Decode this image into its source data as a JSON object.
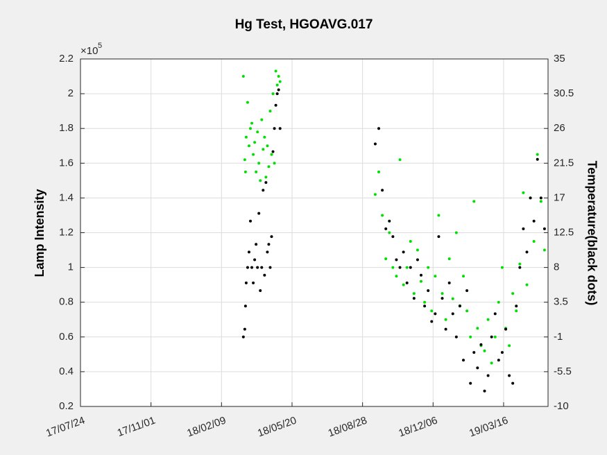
{
  "chart_data": {
    "type": "scatter",
    "title": "Hg Test, HGOAVG.017",
    "ylabel": "Lamp Intensity",
    "y2label": "Temperature(black dots)",
    "y_multiplier_base": "×10",
    "y_multiplier_exponent": "5",
    "grid": true,
    "x": [
      "18/03/12",
      "18/03/14",
      "18/03/15",
      "18/03/16",
      "18/03/18",
      "18/03/20",
      "18/03/22",
      "18/03/24",
      "18/03/26",
      "18/03/28",
      "18/03/30",
      "18/04/01",
      "18/04/03",
      "18/04/05",
      "18/04/07",
      "18/04/09",
      "18/04/11",
      "18/04/13",
      "18/04/15",
      "18/04/17",
      "18/04/19",
      "18/04/21",
      "18/04/23",
      "18/04/25",
      "18/04/27",
      "18/04/29",
      "18/05/01",
      "18/05/03",
      "18/09/15",
      "18/09/20",
      "18/09/25",
      "18/09/30",
      "18/10/05",
      "18/10/10",
      "18/10/15",
      "18/10/20",
      "18/10/25",
      "18/10/30",
      "18/11/04",
      "18/11/09",
      "18/11/14",
      "18/11/19",
      "18/11/24",
      "18/11/29",
      "18/12/04",
      "18/12/09",
      "18/12/14",
      "18/12/19",
      "18/12/24",
      "18/12/29",
      "19/01/03",
      "19/01/08",
      "19/01/13",
      "19/01/18",
      "19/01/23",
      "19/01/28",
      "19/02/02",
      "19/02/07",
      "19/02/12",
      "19/02/17",
      "19/02/22",
      "19/02/27",
      "19/03/04",
      "19/03/09",
      "19/03/14",
      "19/03/19",
      "19/03/24",
      "19/03/29",
      "19/04/03",
      "19/04/08",
      "19/04/13",
      "19/04/18",
      "19/04/23",
      "19/04/28",
      "19/05/03",
      "19/05/08",
      "19/05/13"
    ],
    "series": [
      {
        "name": "Lamp Intensity",
        "color": "#00e000",
        "axis": "y",
        "values": [
          2.1,
          1.62,
          1.55,
          1.75,
          1.95,
          1.7,
          1.8,
          1.83,
          1.65,
          1.72,
          1.55,
          1.78,
          1.6,
          1.5,
          1.85,
          1.68,
          1.75,
          1.52,
          1.7,
          1.58,
          1.9,
          1.65,
          2.0,
          1.6,
          2.13,
          2.05,
          2.1,
          2.07,
          1.42,
          1.55,
          1.3,
          1.05,
          1.2,
          1.0,
          0.95,
          1.62,
          0.9,
          1.0,
          1.15,
          0.85,
          1.1,
          0.92,
          0.8,
          1.0,
          0.75,
          0.95,
          1.3,
          0.85,
          0.7,
          1.05,
          0.82,
          1.2,
          0.78,
          0.95,
          0.75,
          0.6,
          1.38,
          0.65,
          0.55,
          0.52,
          0.7,
          0.45,
          0.6,
          0.8,
          1.0,
          0.65,
          0.55,
          0.85,
          0.75,
          1.02,
          1.43,
          0.9,
          1.4,
          1.15,
          1.65,
          1.38,
          1.1
        ]
      },
      {
        "name": "Temperature",
        "color": "#000000",
        "axis": "y2",
        "values": [
          -1,
          0,
          3,
          6,
          8,
          10,
          14,
          8,
          6,
          9,
          11,
          8,
          15,
          5,
          8,
          18,
          7,
          19,
          10,
          11,
          8,
          12,
          23,
          26,
          29,
          30.5,
          31,
          26,
          24,
          26,
          18,
          13,
          14,
          12,
          9,
          8,
          10,
          6,
          8,
          4,
          9,
          7,
          3,
          5,
          1,
          2,
          12,
          4,
          0,
          6,
          2,
          -1,
          3,
          -4,
          5,
          -7,
          -3,
          -5,
          -2,
          -8,
          -6,
          -1,
          2,
          -4,
          -3,
          0,
          -6,
          -7,
          3,
          8,
          13,
          10,
          17,
          14,
          22,
          17,
          13
        ]
      }
    ],
    "xlim": [
      "17/07/24",
      "19/05/18"
    ],
    "xticks": [
      "17/07/24",
      "17/11/01",
      "18/02/09",
      "18/05/20",
      "18/08/28",
      "18/12/06",
      "19/03/16"
    ],
    "ylim": [
      0.2,
      2.2
    ],
    "yticks": [
      0.2,
      0.4,
      0.6,
      0.8,
      1,
      1.2,
      1.4,
      1.6,
      1.8,
      2,
      2.2
    ],
    "y2lim": [
      -10,
      35
    ],
    "y2ticks": [
      -10,
      -5.5,
      -1,
      3.5,
      8,
      12.5,
      17,
      21.5,
      26,
      30.5,
      35
    ]
  }
}
